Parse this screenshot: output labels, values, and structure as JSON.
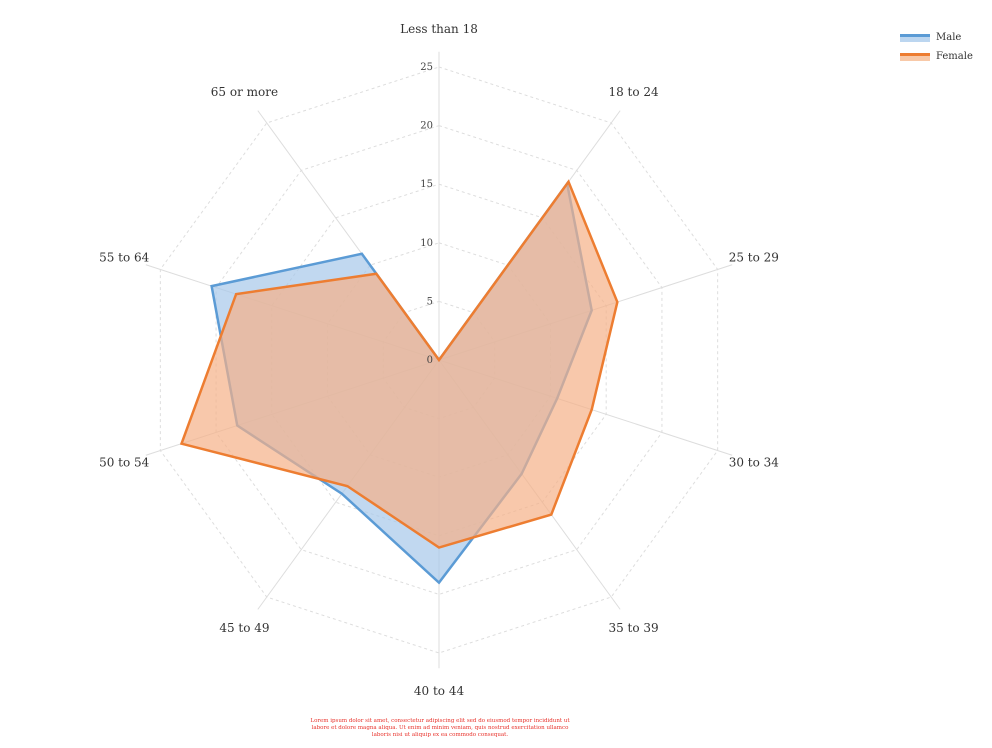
{
  "chart_data": {
    "type": "radar",
    "categories": [
      "Less than 18",
      "18 to 24",
      "25 to 29",
      "30 to 34",
      "35 to 39",
      "40 to 44",
      "45 to 49",
      "50 to 54",
      "55 to 64",
      "65 or more"
    ],
    "radial_ticks": [
      "0",
      "5",
      "10",
      "15",
      "20",
      "25"
    ],
    "rlim": [
      0,
      25
    ],
    "grid": true,
    "legend_position": "top-right",
    "series": [
      {
        "name": "Male",
        "values": [
          0,
          18.6,
          13.7,
          10.6,
          12.0,
          19.0,
          14.1,
          18.1,
          20.4,
          11.2
        ],
        "color": "#5b9bd5",
        "fill": "#a6c8ea"
      },
      {
        "name": "Female",
        "values": [
          0,
          18.8,
          16.0,
          13.7,
          16.3,
          16.0,
          13.3,
          23.1,
          18.2,
          9.1
        ],
        "color": "#ed7d31",
        "fill": "#f5b188"
      }
    ]
  },
  "footnote": "Lorem ipsum dolor sit amet, consectetur adipiscing elit sed do eiusmod tempor incididunt ut labore et dolore magna aliqua. Ut enim ad minim veniam, quis nostrud exercitation ullamco laboris nisi ut aliquip ex ea commodo consequat.",
  "footnote_color": "#e8312a"
}
